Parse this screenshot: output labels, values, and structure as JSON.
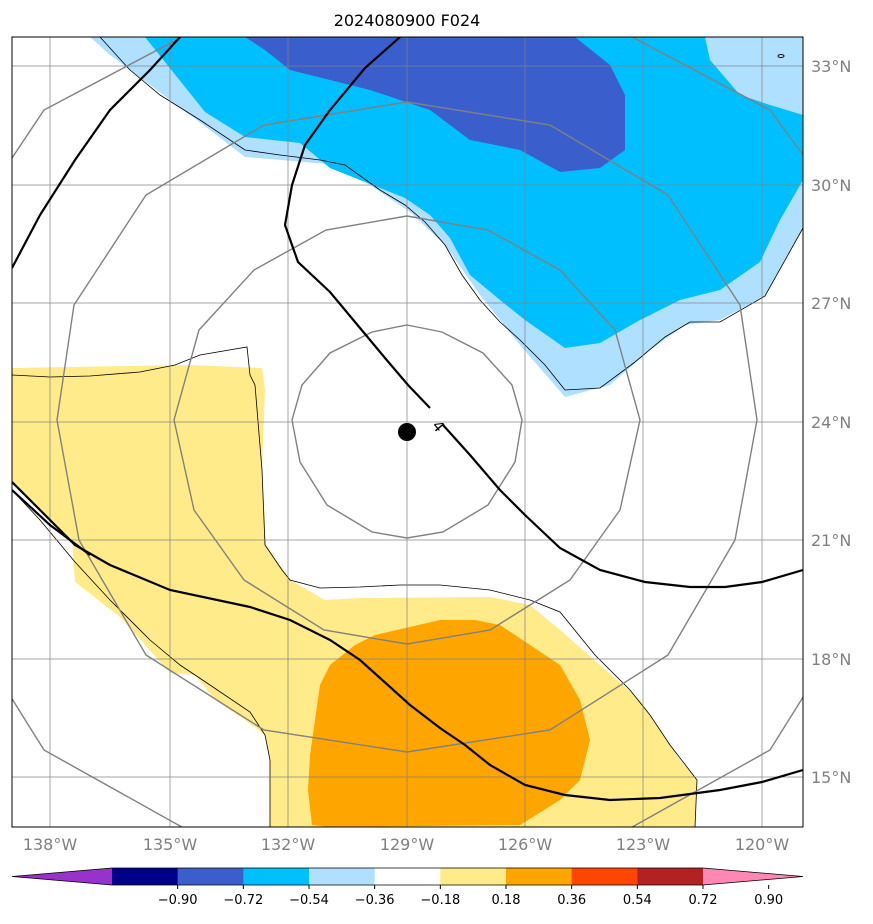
{
  "title": "2024080900 F024",
  "longitude_labels": [
    "138°W",
    "135°W",
    "132°W",
    "129°W",
    "126°W",
    "123°W",
    "120°W"
  ],
  "latitude_labels": [
    "33°N",
    "30°N",
    "27°N",
    "24°N",
    "21°N",
    "18°N",
    "15°N"
  ],
  "contour_label": "4",
  "colorbar": {
    "ticks": [
      "−0.90",
      "−0.72",
      "−0.54",
      "−0.36",
      "−0.18",
      "0.18",
      "0.36",
      "0.54",
      "0.72",
      "0.90"
    ],
    "colors": [
      "#9932cc",
      "#00008b",
      "#3a5fcd",
      "#00bfff",
      "#b0e0ff",
      "#ffffff",
      "#ffeb8a",
      "#ffa500",
      "#ff4500",
      "#b22222",
      "#ff87b4"
    ]
  },
  "colors": {
    "light_blue": "#b0e0ff",
    "blue": "#00bfff",
    "dark_blue": "#3a5fcd",
    "light_yellow": "#ffeb8a",
    "orange": "#ffa500"
  },
  "icons": [
    "storm-center-icon"
  ]
}
